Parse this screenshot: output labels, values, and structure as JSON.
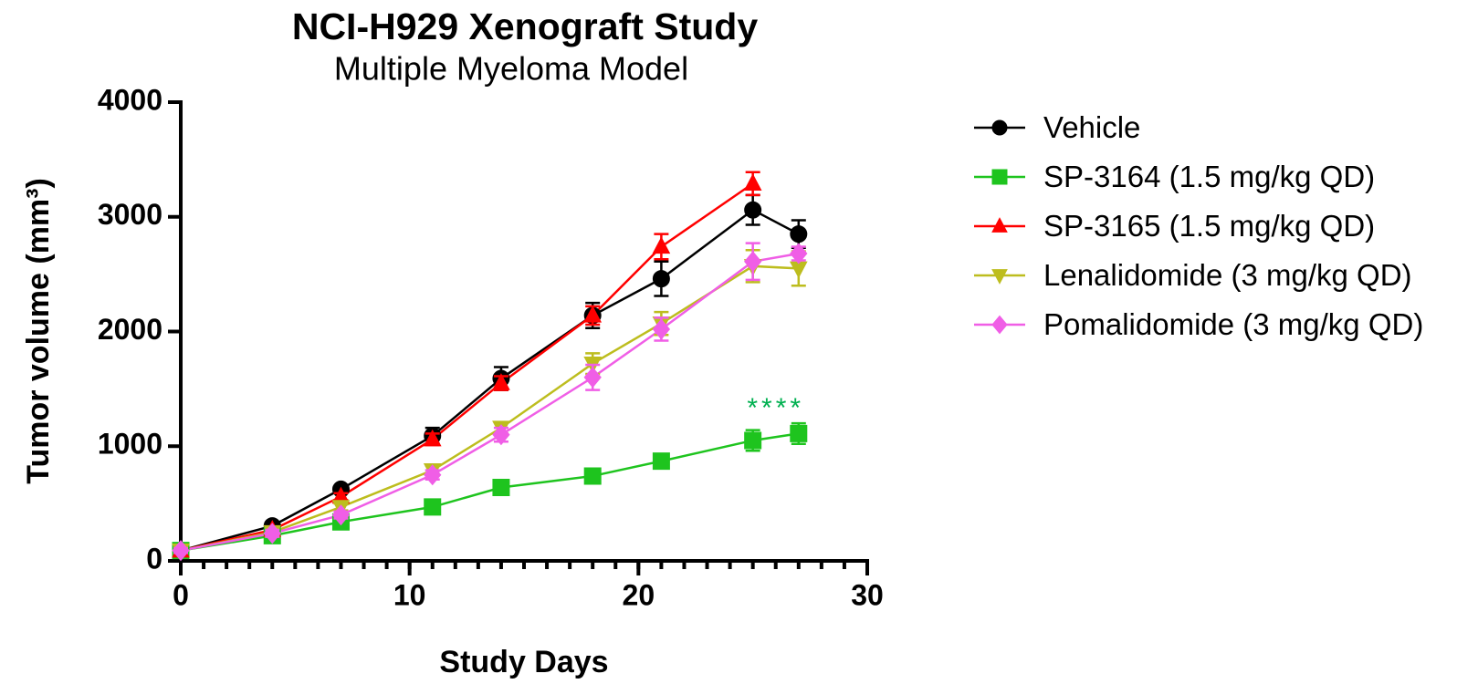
{
  "chart_data": {
    "type": "line",
    "title": "NCI-H929 Xenograft Study",
    "subtitle": "Multiple Myeloma Model",
    "x_label": "Study Days",
    "y_label": "Tumor volume (mm³)",
    "xlim": [
      0,
      30
    ],
    "xticks": [
      0,
      10,
      20,
      30
    ],
    "xminor_step": 1,
    "ylim": [
      0,
      4000
    ],
    "yticks": [
      0,
      1000,
      2000,
      3000,
      4000
    ],
    "grid": false,
    "x": [
      0,
      4,
      7,
      11,
      14,
      18,
      21,
      25,
      27
    ],
    "series": [
      {
        "name": "Vehicle",
        "color": "#000000",
        "marker": "circle",
        "values": [
          90,
          305,
          625,
          1090,
          1590,
          2140,
          2460,
          3060,
          2850
        ],
        "errors": [
          20,
          30,
          30,
          70,
          100,
          110,
          150,
          130,
          120
        ]
      },
      {
        "name": "SP-3164 (1.5 mg/kg QD)",
        "color": "#1ec41e",
        "marker": "square",
        "values": [
          90,
          220,
          340,
          470,
          640,
          740,
          870,
          1050,
          1110
        ],
        "errors": [
          20,
          30,
          30,
          30,
          40,
          60,
          60,
          90,
          90
        ]
      },
      {
        "name": "SP-3165 (1.5 mg/kg QD)",
        "color": "#ff0000",
        "marker": "triangle",
        "values": [
          90,
          270,
          560,
          1060,
          1550,
          2140,
          2740,
          3290,
          null
        ],
        "errors": [
          20,
          30,
          30,
          50,
          60,
          80,
          110,
          100,
          null
        ]
      },
      {
        "name": "Lenalidomide (3 mg/kg QD)",
        "color": "#bdbd1e",
        "marker": "triangle-down",
        "values": [
          90,
          250,
          470,
          790,
          1160,
          1720,
          2070,
          2570,
          2550
        ],
        "errors": [
          20,
          30,
          30,
          40,
          50,
          90,
          100,
          140,
          150
        ]
      },
      {
        "name": "Pomalidomide (3 mg/kg QD)",
        "color": "#f05ee6",
        "marker": "diamond",
        "values": [
          90,
          240,
          400,
          750,
          1100,
          1600,
          2020,
          2610,
          2680
        ],
        "errors": [
          20,
          30,
          30,
          40,
          60,
          110,
          100,
          160,
          60
        ]
      }
    ],
    "annotations": [
      {
        "text": "****",
        "x": 26,
        "y": 1320,
        "color": "#00b050"
      }
    ]
  }
}
